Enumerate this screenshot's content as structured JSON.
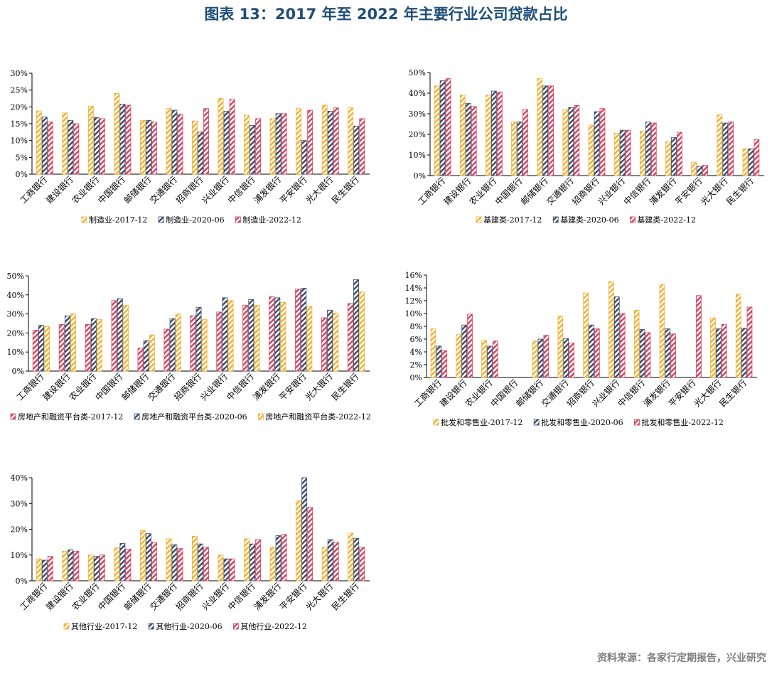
{
  "title": "图表 13：2017 年至 2022 年主要行业公司贷款占比",
  "source": "资料来源：各家行定期报告，兴业研究",
  "palette": {
    "orange": "#f0b030",
    "navy": "#3b4a6b",
    "red": "#d4405c"
  },
  "chart_data": [
    {
      "type": "bar",
      "categories": [
        "工商银行",
        "建设银行",
        "农业银行",
        "中国银行",
        "邮储银行",
        "交通银行",
        "招商银行",
        "兴业银行",
        "中信银行",
        "浦发银行",
        "平安银行",
        "光大银行",
        "民生银行"
      ],
      "yticks": [
        "0%",
        "5%",
        "10%",
        "15%",
        "20%",
        "25%",
        "30%"
      ],
      "ylim": [
        0,
        30
      ],
      "series": [
        {
          "name": "制造业-2017-12",
          "color": "orange",
          "values": [
            18.8,
            18.2,
            20.2,
            24.0,
            16.0,
            19.5,
            15.8,
            22.5,
            17.5,
            16.5,
            19.5,
            20.5,
            19.7
          ]
        },
        {
          "name": "制造业-2020-06",
          "color": "navy",
          "values": [
            17.0,
            16.0,
            16.8,
            20.8,
            16.0,
            19.0,
            12.5,
            18.7,
            14.5,
            18.0,
            10.0,
            18.7,
            14.3
          ]
        },
        {
          "name": "制造业-2022-12",
          "color": "red",
          "values": [
            15.5,
            15.0,
            16.5,
            20.5,
            15.5,
            17.8,
            19.5,
            22.2,
            16.5,
            18.0,
            19.0,
            19.7,
            16.5
          ]
        }
      ]
    },
    {
      "type": "bar",
      "categories": [
        "工商银行",
        "建设银行",
        "农业银行",
        "中国银行",
        "邮储银行",
        "交通银行",
        "招商银行",
        "兴业银行",
        "中信银行",
        "浦发银行",
        "平安银行",
        "光大银行",
        "民生银行"
      ],
      "yticks": [
        "0%",
        "10%",
        "20%",
        "30%",
        "40%",
        "50%"
      ],
      "ylim": [
        0,
        50
      ],
      "series": [
        {
          "name": "基建类-2017-12",
          "color": "orange",
          "values": [
            43.5,
            39.0,
            39.0,
            26.0,
            47.0,
            32.0,
            24.5,
            20.5,
            21.5,
            16.5,
            6.5,
            29.5,
            13.0
          ]
        },
        {
          "name": "基建类-2020-06",
          "color": "navy",
          "values": [
            46.0,
            35.0,
            41.0,
            26.0,
            43.5,
            33.0,
            31.0,
            22.0,
            26.0,
            18.5,
            4.5,
            25.5,
            13.0
          ]
        },
        {
          "name": "基建类-2022-12",
          "color": "red",
          "values": [
            47.0,
            33.5,
            40.5,
            32.0,
            43.5,
            34.0,
            32.5,
            22.0,
            25.5,
            21.0,
            5.0,
            26.0,
            17.5
          ]
        }
      ]
    },
    {
      "type": "bar",
      "categories": [
        "工商银行",
        "建设银行",
        "农业银行",
        "中国银行",
        "邮储银行",
        "交通银行",
        "招商银行",
        "兴业银行",
        "中信银行",
        "浦发银行",
        "平安银行",
        "光大银行",
        "民生银行"
      ],
      "yticks": [
        "0%",
        "10%",
        "20%",
        "30%",
        "40%",
        "50%"
      ],
      "ylim": [
        0,
        50
      ],
      "series": [
        {
          "name": "房地产和融资平台类-2017-12",
          "color": "red",
          "values": [
            21.5,
            24.5,
            24.5,
            37.0,
            12.0,
            22.0,
            29.0,
            31.0,
            34.5,
            39.0,
            43.0,
            28.0,
            35.5
          ]
        },
        {
          "name": "房地产和融资平台类-2020-06",
          "color": "navy",
          "values": [
            24.0,
            29.0,
            27.5,
            38.0,
            16.0,
            27.5,
            33.5,
            38.5,
            37.5,
            38.5,
            43.5,
            32.0,
            48.0
          ]
        },
        {
          "name": "房地产和融资平台类-2022-12",
          "color": "orange",
          "values": [
            23.5,
            30.0,
            27.0,
            34.5,
            19.0,
            30.0,
            27.0,
            37.0,
            34.5,
            36.0,
            34.0,
            30.5,
            41.5
          ]
        }
      ]
    },
    {
      "type": "bar",
      "categories": [
        "工商银行",
        "建设银行",
        "农业银行",
        "中国银行",
        "邮储银行",
        "交通银行",
        "招商银行",
        "兴业银行",
        "中信银行",
        "浦发银行",
        "平安银行",
        "光大银行",
        "民生银行"
      ],
      "yticks": [
        "0%",
        "2%",
        "4%",
        "6%",
        "8%",
        "10%",
        "12%",
        "14%",
        "16%"
      ],
      "ylim": [
        0,
        16
      ],
      "series": [
        {
          "name": "批发和零售业-2017-12",
          "color": "orange",
          "values": [
            7.6,
            6.7,
            5.8,
            0,
            5.7,
            9.6,
            13.2,
            15.0,
            10.5,
            14.5,
            0,
            9.3,
            13.0
          ]
        },
        {
          "name": "批发和零售业-2020-06",
          "color": "navy",
          "values": [
            4.9,
            8.2,
            4.9,
            0,
            6.0,
            6.1,
            8.2,
            12.6,
            7.5,
            7.6,
            0,
            7.6,
            7.7
          ]
        },
        {
          "name": "批发和零售业-2022-12",
          "color": "red",
          "values": [
            4.2,
            9.9,
            5.7,
            0,
            6.6,
            5.4,
            7.6,
            10.0,
            7.0,
            6.8,
            12.8,
            8.3,
            11.0
          ]
        }
      ]
    },
    {
      "type": "bar",
      "categories": [
        "工商银行",
        "建设银行",
        "农业银行",
        "中国银行",
        "邮储银行",
        "交通银行",
        "招商银行",
        "兴业银行",
        "中信银行",
        "浦发银行",
        "平安银行",
        "光大银行",
        "民生银行"
      ],
      "yticks": [
        "0%",
        "10%",
        "20%",
        "30%",
        "40%"
      ],
      "ylim": [
        0,
        40
      ],
      "series": [
        {
          "name": "其他行业-2017-12",
          "color": "orange",
          "values": [
            8.5,
            11.5,
            10.0,
            12.8,
            19.5,
            16.3,
            17.3,
            10.0,
            16.3,
            13.0,
            31.0,
            13.0,
            18.5
          ]
        },
        {
          "name": "其他行业-2020-06",
          "color": "navy",
          "values": [
            8.0,
            12.0,
            9.5,
            14.5,
            18.3,
            14.0,
            14.3,
            8.5,
            14.3,
            17.5,
            40.0,
            16.0,
            16.5
          ]
        },
        {
          "name": "其他行业-2022-12",
          "color": "red",
          "values": [
            9.5,
            11.5,
            10.0,
            12.3,
            15.0,
            12.5,
            13.0,
            8.5,
            16.0,
            18.0,
            28.5,
            15.0,
            13.0
          ]
        }
      ]
    }
  ]
}
